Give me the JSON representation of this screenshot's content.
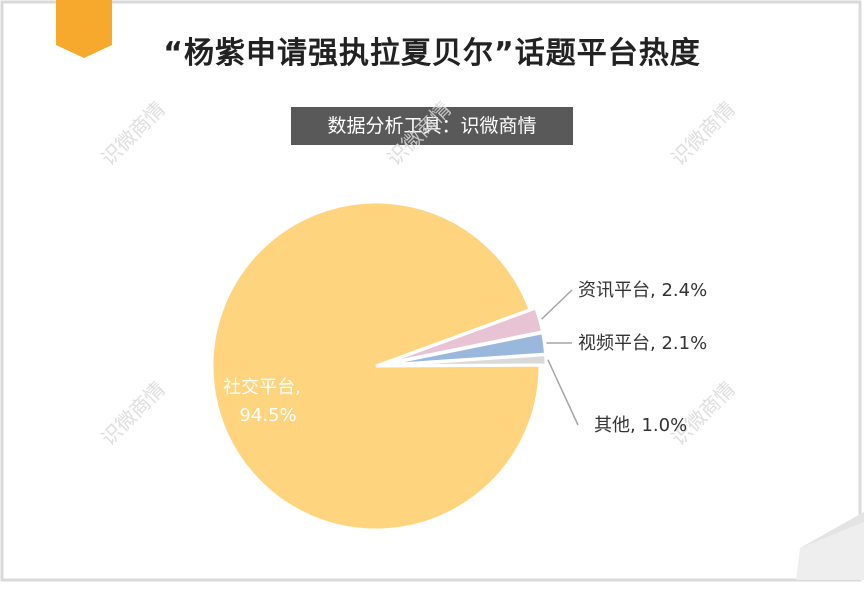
{
  "header": {
    "title": "“杨紫申请强执拉夏贝尔”话题平台热度",
    "subtitle": "数据分析工具：识微商情"
  },
  "watermark": {
    "text": "识微商情"
  },
  "colors": {
    "accent": "#f7a92d",
    "border": "#d9d9d9",
    "subtitle_bg": "#595959"
  },
  "chart_data": {
    "type": "pie",
    "title": "“杨紫申请强执拉夏贝尔”话题平台热度",
    "slices": [
      {
        "name": "社交平台",
        "value": 94.5,
        "label": "社交平台,",
        "pct_label": "94.5%",
        "color": "#ffd47f"
      },
      {
        "name": "资讯平台",
        "value": 2.4,
        "label": "资讯平台, 2.4%",
        "color": "#e8c3d3"
      },
      {
        "name": "视频平台",
        "value": 2.1,
        "label": "视频平台, 2.1%",
        "color": "#9ab8dc"
      },
      {
        "name": "其他",
        "value": 1.0,
        "label": "其他, 1.0%",
        "color": "#d9d9d9"
      }
    ],
    "legend": "none"
  }
}
